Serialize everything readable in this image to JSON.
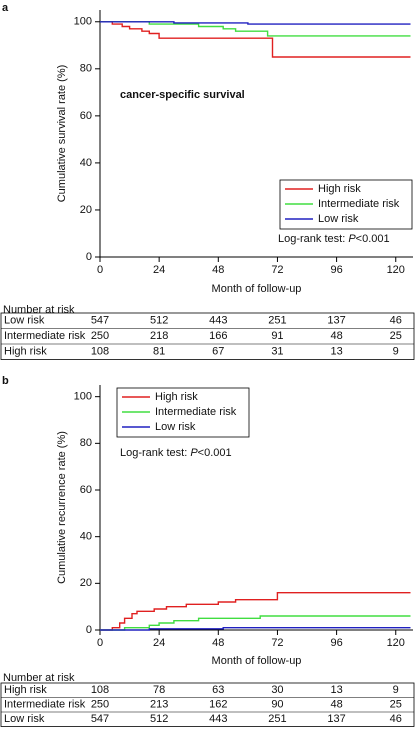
{
  "chart_data": [
    {
      "type": "line",
      "panel_label": "a",
      "annotation": "cancer-specific survival",
      "x_label": "Month of follow-up",
      "y_label": "Cumulative survival rate (%)",
      "xlim": [
        0,
        127
      ],
      "xticks": [
        0,
        24,
        48,
        72,
        96,
        120
      ],
      "ylim": [
        0,
        105
      ],
      "yticks": [
        0,
        20,
        40,
        60,
        80,
        100
      ],
      "legend": "lower right",
      "log_rank": [
        "Log-rank test: ",
        "P",
        "<0.001"
      ],
      "series": [
        {
          "name": "High risk",
          "color": "#e02020",
          "x": [
            0,
            5,
            5,
            9,
            9,
            12,
            12,
            17,
            17,
            20,
            20,
            24,
            24,
            70,
            70,
            126
          ],
          "values": [
            100,
            100,
            99,
            99,
            98,
            98,
            97,
            97,
            96,
            96,
            95,
            95,
            93,
            93,
            85,
            85
          ]
        },
        {
          "name": "Intermediate risk",
          "color": "#40dd40",
          "x": [
            0,
            20,
            20,
            40,
            40,
            50,
            50,
            55,
            55,
            68,
            68,
            126
          ],
          "values": [
            100,
            100,
            99,
            99,
            98,
            98,
            97,
            97,
            96,
            96,
            94,
            94
          ]
        },
        {
          "name": "Low risk",
          "color": "#2020c0",
          "x": [
            0,
            30,
            30,
            60,
            60,
            126
          ],
          "values": [
            100,
            100,
            99.5,
            99.5,
            99,
            99
          ]
        }
      ]
    },
    {
      "type": "line",
      "panel_label": "b",
      "x_label": "Month of follow-up",
      "y_label": "Cumulative recurrence rate (%)",
      "xlim": [
        0,
        127
      ],
      "xticks": [
        0,
        24,
        48,
        72,
        96,
        120
      ],
      "ylim": [
        0,
        105
      ],
      "yticks": [
        0,
        20,
        40,
        60,
        80,
        100
      ],
      "legend": "upper left",
      "log_rank": [
        "Log-rank test: ",
        "P",
        "<0.001"
      ],
      "series": [
        {
          "name": "High risk",
          "color": "#e02020",
          "x": [
            0,
            5,
            5,
            8,
            8,
            10,
            10,
            13,
            13,
            15,
            15,
            22,
            22,
            27,
            27,
            35,
            35,
            48,
            48,
            55,
            55,
            72,
            72,
            126
          ],
          "values": [
            0,
            0,
            1,
            1,
            3,
            3,
            5,
            5,
            7,
            7,
            8,
            8,
            9,
            9,
            10,
            10,
            11,
            11,
            12,
            12,
            13,
            13,
            16,
            16
          ]
        },
        {
          "name": "Intermediate risk",
          "color": "#40dd40",
          "x": [
            0,
            10,
            10,
            20,
            20,
            24,
            24,
            30,
            30,
            40,
            40,
            65,
            65,
            126
          ],
          "values": [
            0,
            0,
            1,
            1,
            2,
            2,
            3,
            3,
            4,
            4,
            5,
            5,
            6,
            6
          ]
        },
        {
          "name": "Low risk",
          "color": "#2020c0",
          "x": [
            0,
            20,
            20,
            50,
            50,
            126
          ],
          "values": [
            0,
            0,
            0.5,
            0.5,
            1,
            1
          ]
        }
      ]
    }
  ],
  "risk_tables": [
    {
      "title": "Number at risk",
      "rows": [
        {
          "name": "Low risk",
          "values": [
            547,
            512,
            443,
            251,
            137,
            46
          ]
        },
        {
          "name": "Intermediate risk",
          "values": [
            250,
            218,
            166,
            91,
            48,
            25
          ]
        },
        {
          "name": "High risk",
          "values": [
            108,
            81,
            67,
            31,
            13,
            9
          ]
        }
      ]
    },
    {
      "title": "Number at risk",
      "rows": [
        {
          "name": "High risk",
          "values": [
            108,
            78,
            63,
            30,
            13,
            9
          ]
        },
        {
          "name": "Intermediate risk",
          "values": [
            250,
            213,
            162,
            90,
            48,
            25
          ]
        },
        {
          "name": "Low risk",
          "values": [
            547,
            512,
            443,
            251,
            137,
            46
          ]
        }
      ]
    }
  ]
}
